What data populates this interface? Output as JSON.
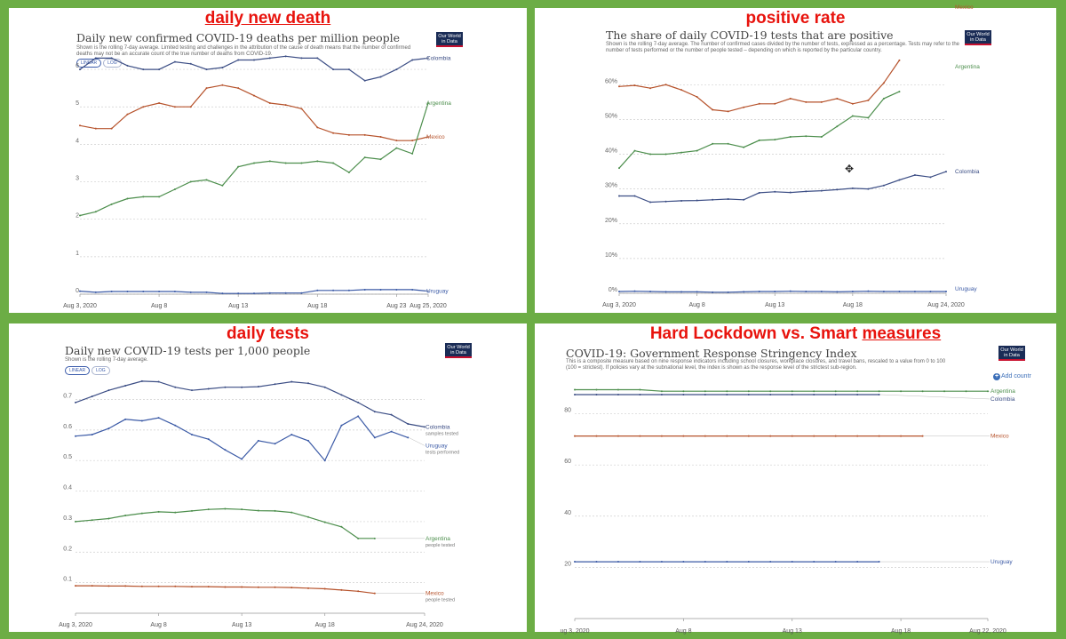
{
  "panels": [
    {
      "heading": "daily new death",
      "title": "Daily new confirmed COVID-19 deaths per million people",
      "subtitle": "Shown is the rolling 7-day average. Limited testing and challenges in the attribution of the cause of death means that the number of confirmed deaths may not be an accurate count of the true number of deaths from COVID-19.",
      "logo": [
        "Our World",
        "in Data"
      ],
      "toggle": [
        "LINEAR",
        "LOG"
      ]
    },
    {
      "heading": "positive rate",
      "title": "The share of daily COVID-19 tests that are positive",
      "subtitle": "Shown is the rolling 7-day average. The number of confirmed cases divided by the number of tests, expressed as a percentage. Tests may refer to the number of tests performed or the number of people tested – depending on which is reported by the particular country.",
      "logo": [
        "Our World",
        "in Data"
      ]
    },
    {
      "heading": "daily tests",
      "title": "Daily new COVID-19 tests per 1,000 people",
      "subtitle": "Shown is the rolling 7-day average.",
      "logo": [
        "Our World",
        "in Data"
      ],
      "toggle": [
        "LINEAR",
        "LOG"
      ]
    },
    {
      "heading_parts": [
        "Hard Lockdown vs. Smart ",
        "measures"
      ],
      "title": "COVID-19: Government Response Stringency Index",
      "subtitle": "This is a composite measure based on nine response indicators including school closures, workplace closures, and travel bans, rescaled to a value from 0 to 100 (100 = strictest). If policies vary at the subnational level, the index is shown as the response level of the strictest sub-region.",
      "logo": [
        "Our World",
        "in Data"
      ],
      "add_label": "Add countr",
      "add_icon": "plus-icon"
    }
  ],
  "colors": {
    "Colombia": "#3c4e85",
    "Mexico": "#b6522b",
    "Argentina": "#4c8e4c",
    "Uruguay": "#3b5aa6",
    "heading": "#e8130d",
    "background": "#6cad45"
  },
  "chart_data": [
    {
      "type": "line",
      "title": "Daily new confirmed COVID-19 deaths per million people",
      "x_start": "Aug 3, 2020",
      "x_ticks": [
        "Aug 3, 2020",
        "Aug 8",
        "Aug 13",
        "Aug 18",
        "Aug 23",
        "Aug 25, 2020"
      ],
      "x_tick_days": [
        0,
        5,
        10,
        15,
        20,
        22
      ],
      "ylim": [
        0,
        6.5
      ],
      "y_ticks": [
        0,
        1,
        2,
        3,
        4,
        5,
        6
      ],
      "grid": true,
      "series": [
        {
          "name": "Colombia",
          "days": [
            0,
            1,
            2,
            3,
            4,
            5,
            6,
            7,
            8,
            9,
            10,
            11,
            12,
            13,
            14,
            15,
            16,
            17,
            18,
            19,
            20,
            21,
            22
          ],
          "values": [
            6.0,
            6.3,
            6.3,
            6.1,
            6.0,
            6.0,
            6.2,
            6.15,
            6.0,
            6.05,
            6.25,
            6.25,
            6.3,
            6.35,
            6.3,
            6.3,
            6.0,
            6.0,
            5.7,
            5.8,
            6.0,
            6.25,
            6.3
          ]
        },
        {
          "name": "Mexico",
          "days": [
            0,
            1,
            2,
            3,
            4,
            5,
            6,
            7,
            8,
            9,
            10,
            11,
            12,
            13,
            14,
            15,
            16,
            17,
            18,
            19,
            20,
            21,
            22
          ],
          "values": [
            4.5,
            4.42,
            4.42,
            4.8,
            5.0,
            5.1,
            5.0,
            5.0,
            5.5,
            5.58,
            5.5,
            5.3,
            5.1,
            5.05,
            4.95,
            4.45,
            4.3,
            4.25,
            4.25,
            4.2,
            4.1,
            4.1,
            4.2
          ]
        },
        {
          "name": "Argentina",
          "days": [
            0,
            1,
            2,
            3,
            4,
            5,
            6,
            7,
            8,
            9,
            10,
            11,
            12,
            13,
            14,
            15,
            16,
            17,
            18,
            19,
            20,
            21,
            22
          ],
          "values": [
            2.1,
            2.2,
            2.4,
            2.55,
            2.6,
            2.6,
            2.8,
            3.0,
            3.05,
            2.9,
            3.4,
            3.5,
            3.55,
            3.5,
            3.5,
            3.55,
            3.5,
            3.25,
            3.65,
            3.6,
            3.9,
            3.75,
            5.1
          ]
        },
        {
          "name": "Uruguay",
          "days": [
            0,
            1,
            2,
            3,
            4,
            5,
            6,
            7,
            8,
            9,
            10,
            11,
            12,
            13,
            14,
            15,
            16,
            17,
            18,
            19,
            20,
            21,
            22
          ],
          "values": [
            0.08,
            0.05,
            0.07,
            0.07,
            0.07,
            0.07,
            0.07,
            0.05,
            0.05,
            0.02,
            0.02,
            0.02,
            0.03,
            0.03,
            0.03,
            0.1,
            0.1,
            0.1,
            0.12,
            0.12,
            0.12,
            0.12,
            0.08
          ]
        }
      ]
    },
    {
      "type": "line",
      "title": "The share of daily COVID-19 tests that are positive",
      "x_start": "Aug 3, 2020",
      "x_ticks": [
        "Aug 3, 2020",
        "Aug 8",
        "Aug 13",
        "Aug 18",
        "Aug 24, 2020"
      ],
      "x_tick_days": [
        0,
        5,
        10,
        15,
        21
      ],
      "ylim": [
        0,
        68
      ],
      "y_ticks": [
        0,
        10,
        20,
        30,
        40,
        50,
        60
      ],
      "y_tick_labels": [
        "0%",
        "10%",
        "20%",
        "30%",
        "40%",
        "50%",
        "60%"
      ],
      "grid": true,
      "series": [
        {
          "name": "Mexico",
          "days": [
            0,
            1,
            2,
            3,
            4,
            5,
            6,
            7,
            8,
            9,
            10,
            11,
            12,
            13,
            14,
            15,
            16,
            17,
            18
          ],
          "values": [
            59.5,
            59.8,
            59,
            60,
            58.5,
            56.5,
            52.8,
            52.3,
            53.5,
            54.5,
            54.5,
            56,
            55,
            55,
            56,
            54.5,
            55.5,
            60.5,
            67
          ]
        },
        {
          "name": "Argentina",
          "days": [
            0,
            1,
            2,
            3,
            4,
            5,
            6,
            7,
            8,
            9,
            10,
            11,
            12,
            13,
            14,
            15,
            16,
            17,
            18
          ],
          "values": [
            36,
            41,
            40,
            40,
            40.5,
            41,
            43,
            43,
            42,
            44,
            44.2,
            45,
            45.2,
            45,
            48,
            51,
            50.5,
            56,
            58
          ]
        },
        {
          "name": "Colombia",
          "days": [
            0,
            1,
            2,
            3,
            4,
            5,
            6,
            7,
            8,
            9,
            10,
            11,
            12,
            13,
            14,
            15,
            16,
            17,
            18,
            19,
            20,
            21
          ],
          "values": [
            28,
            28,
            26.2,
            26.4,
            26.6,
            26.7,
            26.9,
            27.1,
            26.9,
            28.9,
            29.2,
            29,
            29.3,
            29.5,
            29.8,
            30.2,
            30,
            31,
            32.6,
            34,
            33.4,
            35
          ]
        },
        {
          "name": "Uruguay",
          "days": [
            0,
            1,
            2,
            3,
            4,
            5,
            6,
            7,
            8,
            9,
            10,
            11,
            12,
            13,
            14,
            15,
            16,
            17,
            18,
            19,
            20,
            21
          ],
          "values": [
            0.5,
            0.6,
            0.5,
            0.4,
            0.4,
            0.4,
            0.3,
            0.3,
            0.4,
            0.5,
            0.5,
            0.6,
            0.5,
            0.5,
            0.4,
            0.5,
            0.6,
            0.5,
            0.5,
            0.5,
            0.5,
            0.5
          ]
        }
      ]
    },
    {
      "type": "line",
      "title": "Daily new COVID-19 tests per 1,000 people",
      "x_start": "Aug 3, 2020",
      "x_ticks": [
        "Aug 3, 2020",
        "Aug 8",
        "Aug 13",
        "Aug 18",
        "Aug 24, 2020"
      ],
      "x_tick_days": [
        0,
        5,
        10,
        15,
        21
      ],
      "ylim": [
        0,
        0.78
      ],
      "y_ticks": [
        0.1,
        0.2,
        0.3,
        0.4,
        0.5,
        0.6,
        0.7
      ],
      "grid": true,
      "series": [
        {
          "name": "Colombia",
          "sublabel": "samples tested",
          "days": [
            0,
            1,
            2,
            3,
            4,
            5,
            6,
            7,
            8,
            9,
            10,
            11,
            12,
            13,
            14,
            15,
            16,
            17,
            18,
            19,
            20,
            21
          ],
          "values": [
            0.69,
            0.71,
            0.73,
            0.745,
            0.76,
            0.758,
            0.74,
            0.73,
            0.735,
            0.74,
            0.74,
            0.742,
            0.75,
            0.758,
            0.753,
            0.74,
            0.715,
            0.69,
            0.66,
            0.65,
            0.62,
            0.61
          ]
        },
        {
          "name": "Uruguay",
          "sublabel": "tests performed",
          "days": [
            0,
            1,
            2,
            3,
            4,
            5,
            6,
            7,
            8,
            9,
            10,
            11,
            12,
            13,
            14,
            15,
            16,
            17,
            18,
            19,
            20
          ],
          "values": [
            0.58,
            0.585,
            0.605,
            0.635,
            0.63,
            0.64,
            0.615,
            0.585,
            0.57,
            0.535,
            0.505,
            0.565,
            0.555,
            0.585,
            0.565,
            0.5,
            0.615,
            0.645,
            0.575,
            0.595,
            0.575
          ]
        },
        {
          "name": "Argentina",
          "sublabel": "people tested",
          "days": [
            0,
            1,
            2,
            3,
            4,
            5,
            6,
            7,
            8,
            9,
            10,
            11,
            12,
            13,
            14,
            15,
            16,
            17,
            18
          ],
          "values": [
            0.3,
            0.305,
            0.31,
            0.32,
            0.327,
            0.332,
            0.33,
            0.335,
            0.34,
            0.342,
            0.34,
            0.336,
            0.335,
            0.33,
            0.315,
            0.298,
            0.283,
            0.245,
            0.245
          ]
        },
        {
          "name": "Mexico",
          "sublabel": "people tested",
          "days": [
            0,
            1,
            2,
            3,
            4,
            5,
            6,
            7,
            8,
            9,
            10,
            11,
            12,
            13,
            14,
            15,
            16,
            17,
            18
          ],
          "values": [
            0.09,
            0.09,
            0.089,
            0.089,
            0.088,
            0.088,
            0.088,
            0.087,
            0.087,
            0.086,
            0.086,
            0.085,
            0.085,
            0.084,
            0.082,
            0.08,
            0.076,
            0.072,
            0.065
          ]
        }
      ]
    },
    {
      "type": "line",
      "title": "COVID-19: Government Response Stringency Index",
      "x_start": "Aug 3, 2020",
      "x_ticks": [
        "ug 3, 2020",
        "Aug 8",
        "Aug 13",
        "Aug 18",
        "Aug 22, 2020"
      ],
      "x_tick_days": [
        0,
        5,
        10,
        15,
        19
      ],
      "ylim": [
        0,
        92
      ],
      "y_ticks": [
        20,
        40,
        60,
        80
      ],
      "grid": true,
      "series": [
        {
          "name": "Argentina",
          "days": [
            0,
            1,
            2,
            3,
            4,
            5,
            6,
            7,
            8,
            9,
            10,
            11,
            12,
            13,
            14,
            15,
            16,
            17,
            18,
            19
          ],
          "values": [
            89.4,
            89.4,
            89.4,
            89.4,
            88.8,
            88.8,
            88.8,
            88.8,
            88.8,
            88.8,
            88.8,
            88.8,
            88.8,
            88.8,
            88.8,
            88.8,
            88.8,
            88.8,
            88.8,
            88.8
          ]
        },
        {
          "name": "Colombia",
          "days": [
            0,
            1,
            2,
            3,
            4,
            5,
            6,
            7,
            8,
            9,
            10,
            11,
            12,
            13,
            14
          ],
          "values": [
            87.5,
            87.5,
            87.5,
            87.5,
            87.5,
            87.5,
            87.5,
            87.5,
            87.5,
            87.5,
            87.5,
            87.5,
            87.5,
            87.5,
            87.5
          ]
        },
        {
          "name": "Mexico",
          "days": [
            0,
            1,
            2,
            3,
            4,
            5,
            6,
            7,
            8,
            9,
            10,
            11,
            12,
            13,
            14,
            15,
            16
          ],
          "values": [
            71.3,
            71.3,
            71.3,
            71.3,
            71.3,
            71.3,
            71.3,
            71.3,
            71.3,
            71.3,
            71.3,
            71.3,
            71.3,
            71.3,
            71.3,
            71.3,
            71.3
          ]
        },
        {
          "name": "Uruguay",
          "days": [
            0,
            1,
            2,
            3,
            4,
            5,
            6,
            7,
            8,
            9,
            10,
            11,
            12,
            13,
            14
          ],
          "values": [
            22.2,
            22.2,
            22.2,
            22.2,
            22.2,
            22.2,
            22.2,
            22.2,
            22.2,
            22.2,
            22.2,
            22.2,
            22.2,
            22.2,
            22.2
          ]
        }
      ]
    }
  ]
}
